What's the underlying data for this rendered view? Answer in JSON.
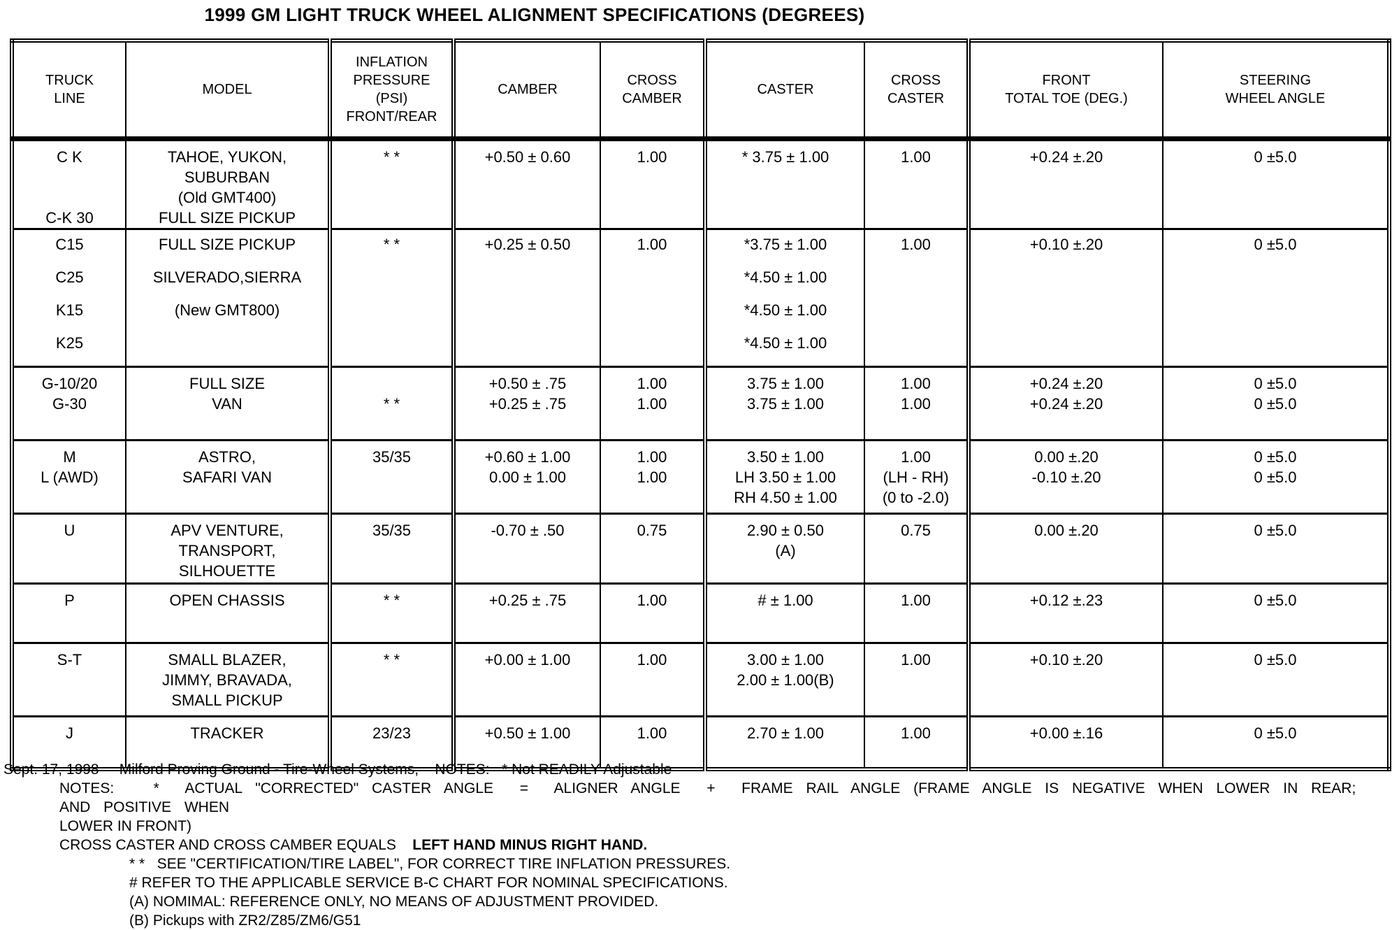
{
  "title": "1999 GM LIGHT TRUCK WHEEL ALIGNMENT SPECIFICATIONS (DEGREES)",
  "table": {
    "columns": [
      {
        "key": "truck_line",
        "label": [
          "TRUCK",
          "LINE"
        ],
        "group_start": false
      },
      {
        "key": "model",
        "label": [
          "MODEL"
        ],
        "group_start": false
      },
      {
        "key": "inflation",
        "label": [
          "INFLATION",
          "PRESSURE",
          "(PSI)",
          "FRONT/REAR"
        ],
        "group_start": true
      },
      {
        "key": "camber",
        "label": [
          "CAMBER"
        ],
        "group_start": true
      },
      {
        "key": "cross_camber",
        "label": [
          "CROSS",
          "CAMBER"
        ],
        "group_start": false
      },
      {
        "key": "caster",
        "label": [
          "CASTER"
        ],
        "group_start": true
      },
      {
        "key": "cross_caster",
        "label": [
          "CROSS",
          "CASTER"
        ],
        "group_start": false
      },
      {
        "key": "front_toe",
        "label": [
          "FRONT",
          "TOTAL TOE (DEG.)"
        ],
        "group_start": true
      },
      {
        "key": "steering",
        "label": [
          "STEERING",
          "WHEEL ANGLE"
        ],
        "group_start": false
      }
    ],
    "rows": [
      {
        "truck_line": [
          "C K",
          "",
          "",
          "C-K 30"
        ],
        "model": [
          "TAHOE, YUKON,",
          "SUBURBAN",
          "(Old GMT400)",
          "FULL SIZE PICKUP"
        ],
        "inflation": [
          "* *"
        ],
        "camber": [
          "+0.50 ± 0.60"
        ],
        "cross_camber": [
          "1.00"
        ],
        "caster": [
          "* 3.75 ± 1.00"
        ],
        "cross_caster": [
          "1.00"
        ],
        "front_toe": [
          "+0.24 ±.20"
        ],
        "steering": [
          "0 ±5.0"
        ]
      },
      {
        "truck_line": [
          "C15",
          "C25",
          "K15",
          "K25"
        ],
        "model": [
          "FULL SIZE PICKUP",
          "SILVERADO,SIERRA",
          "(New GMT800)"
        ],
        "inflation": [
          "* *"
        ],
        "camber": [
          "+0.25 ± 0.50"
        ],
        "cross_camber": [
          "1.00"
        ],
        "caster": [
          "*3.75 ± 1.00",
          "*4.50 ± 1.00",
          "*4.50 ± 1.00",
          "*4.50 ± 1.00"
        ],
        "cross_caster": [
          "1.00"
        ],
        "front_toe": [
          "+0.10 ±.20"
        ],
        "steering": [
          "0 ±5.0"
        ]
      },
      {
        "truck_line": [
          "G-10/20",
          "G-30"
        ],
        "model": [
          "FULL SIZE",
          "VAN"
        ],
        "inflation": [
          "",
          "* *"
        ],
        "camber": [
          "+0.50 ± .75",
          "+0.25 ± .75"
        ],
        "cross_camber": [
          "1.00",
          "1.00"
        ],
        "caster": [
          "3.75 ± 1.00",
          "3.75 ± 1.00"
        ],
        "cross_caster": [
          "1.00",
          "1.00"
        ],
        "front_toe": [
          "+0.24 ±.20",
          "+0.24 ±.20"
        ],
        "steering": [
          "0 ±5.0",
          "0 ±5.0"
        ]
      },
      {
        "truck_line": [
          "M",
          "L (AWD)"
        ],
        "model": [
          "ASTRO,",
          "SAFARI VAN"
        ],
        "inflation": [
          "35/35"
        ],
        "camber": [
          "+0.60 ± 1.00",
          "0.00 ± 1.00"
        ],
        "cross_camber": [
          "1.00",
          "1.00"
        ],
        "caster": [
          "3.50 ± 1.00",
          "LH 3.50 ± 1.00",
          "RH 4.50 ± 1.00"
        ],
        "cross_caster": [
          "1.00",
          "(LH - RH)",
          "(0 to -2.0)"
        ],
        "front_toe": [
          "0.00 ±.20",
          "-0.10 ±.20"
        ],
        "steering": [
          "0 ±5.0",
          "0 ±5.0"
        ]
      },
      {
        "truck_line": [
          "U"
        ],
        "model": [
          "APV VENTURE,",
          "TRANSPORT,",
          "SILHOUETTE"
        ],
        "inflation": [
          "35/35"
        ],
        "camber": [
          "-0.70 ± .50"
        ],
        "cross_camber": [
          "0.75"
        ],
        "caster": [
          "2.90 ± 0.50",
          "(A)"
        ],
        "cross_caster": [
          "0.75"
        ],
        "front_toe": [
          "0.00 ±.20"
        ],
        "steering": [
          "0 ±5.0"
        ]
      },
      {
        "truck_line": [
          "P"
        ],
        "model": [
          "OPEN CHASSIS"
        ],
        "inflation": [
          "* *"
        ],
        "camber": [
          "+0.25 ± .75"
        ],
        "cross_camber": [
          "1.00"
        ],
        "caster": [
          "# ± 1.00"
        ],
        "cross_caster": [
          "1.00"
        ],
        "front_toe": [
          "+0.12 ±.23"
        ],
        "steering": [
          "0 ±5.0"
        ]
      },
      {
        "truck_line": [
          "S-T"
        ],
        "model": [
          "SMALL BLAZER,",
          "JIMMY, BRAVADA,",
          "SMALL PICKUP"
        ],
        "inflation": [
          "* *"
        ],
        "camber": [
          "+0.00 ± 1.00"
        ],
        "cross_camber": [
          "1.00"
        ],
        "caster": [
          "3.00 ± 1.00",
          "2.00 ± 1.00(B)"
        ],
        "cross_caster": [
          "1.00"
        ],
        "front_toe": [
          "+0.10 ±.20"
        ],
        "steering": [
          "0 ±5.0"
        ]
      },
      {
        "truck_line": [
          "J"
        ],
        "model": [
          "TRACKER"
        ],
        "inflation": [
          "23/23"
        ],
        "camber": [
          "+0.50 ± 1.00"
        ],
        "cross_camber": [
          "1.00"
        ],
        "caster": [
          "2.70 ± 1.00"
        ],
        "cross_caster": [
          "1.00"
        ],
        "front_toe": [
          "+0.00 ±.16"
        ],
        "steering": [
          "0 ±5.0"
        ]
      }
    ]
  },
  "footnotes": {
    "line1": "Sept. 17, 1998     Milford Proving Ground - Tire-Wheel Systems,    NOTES:   * Not READILY Adjustable",
    "notes_indent1": [
      "NOTES:   *  ACTUAL \"CORRECTED\" CASTER ANGLE  =  ALIGNER ANGLE  +  FRAME RAIL ANGLE (FRAME ANGLE IS NEGATIVE WHEN LOWER IN REAR; AND POSITIVE WHEN",
      "LOWER IN FRONT)"
    ],
    "cross_note_prefix": "CROSS CASTER AND CROSS CAMBER EQUALS    ",
    "cross_note_bold": "LEFT HAND MINUS RIGHT HAND.",
    "notes_indent2": [
      "* *   SEE \"CERTIFICATION/TIRE LABEL\", FOR CORRECT TIRE INFLATION PRESSURES.",
      "# REFER TO THE APPLICABLE SERVICE B-C CHART FOR NOMINAL SPECIFICATIONS.",
      "(A) NOMIMAL: REFERENCE ONLY, NO MEANS OF ADJUSTMENT PROVIDED.",
      "(B) Pickups with ZR2/Z85/ZM6/G51"
    ]
  }
}
